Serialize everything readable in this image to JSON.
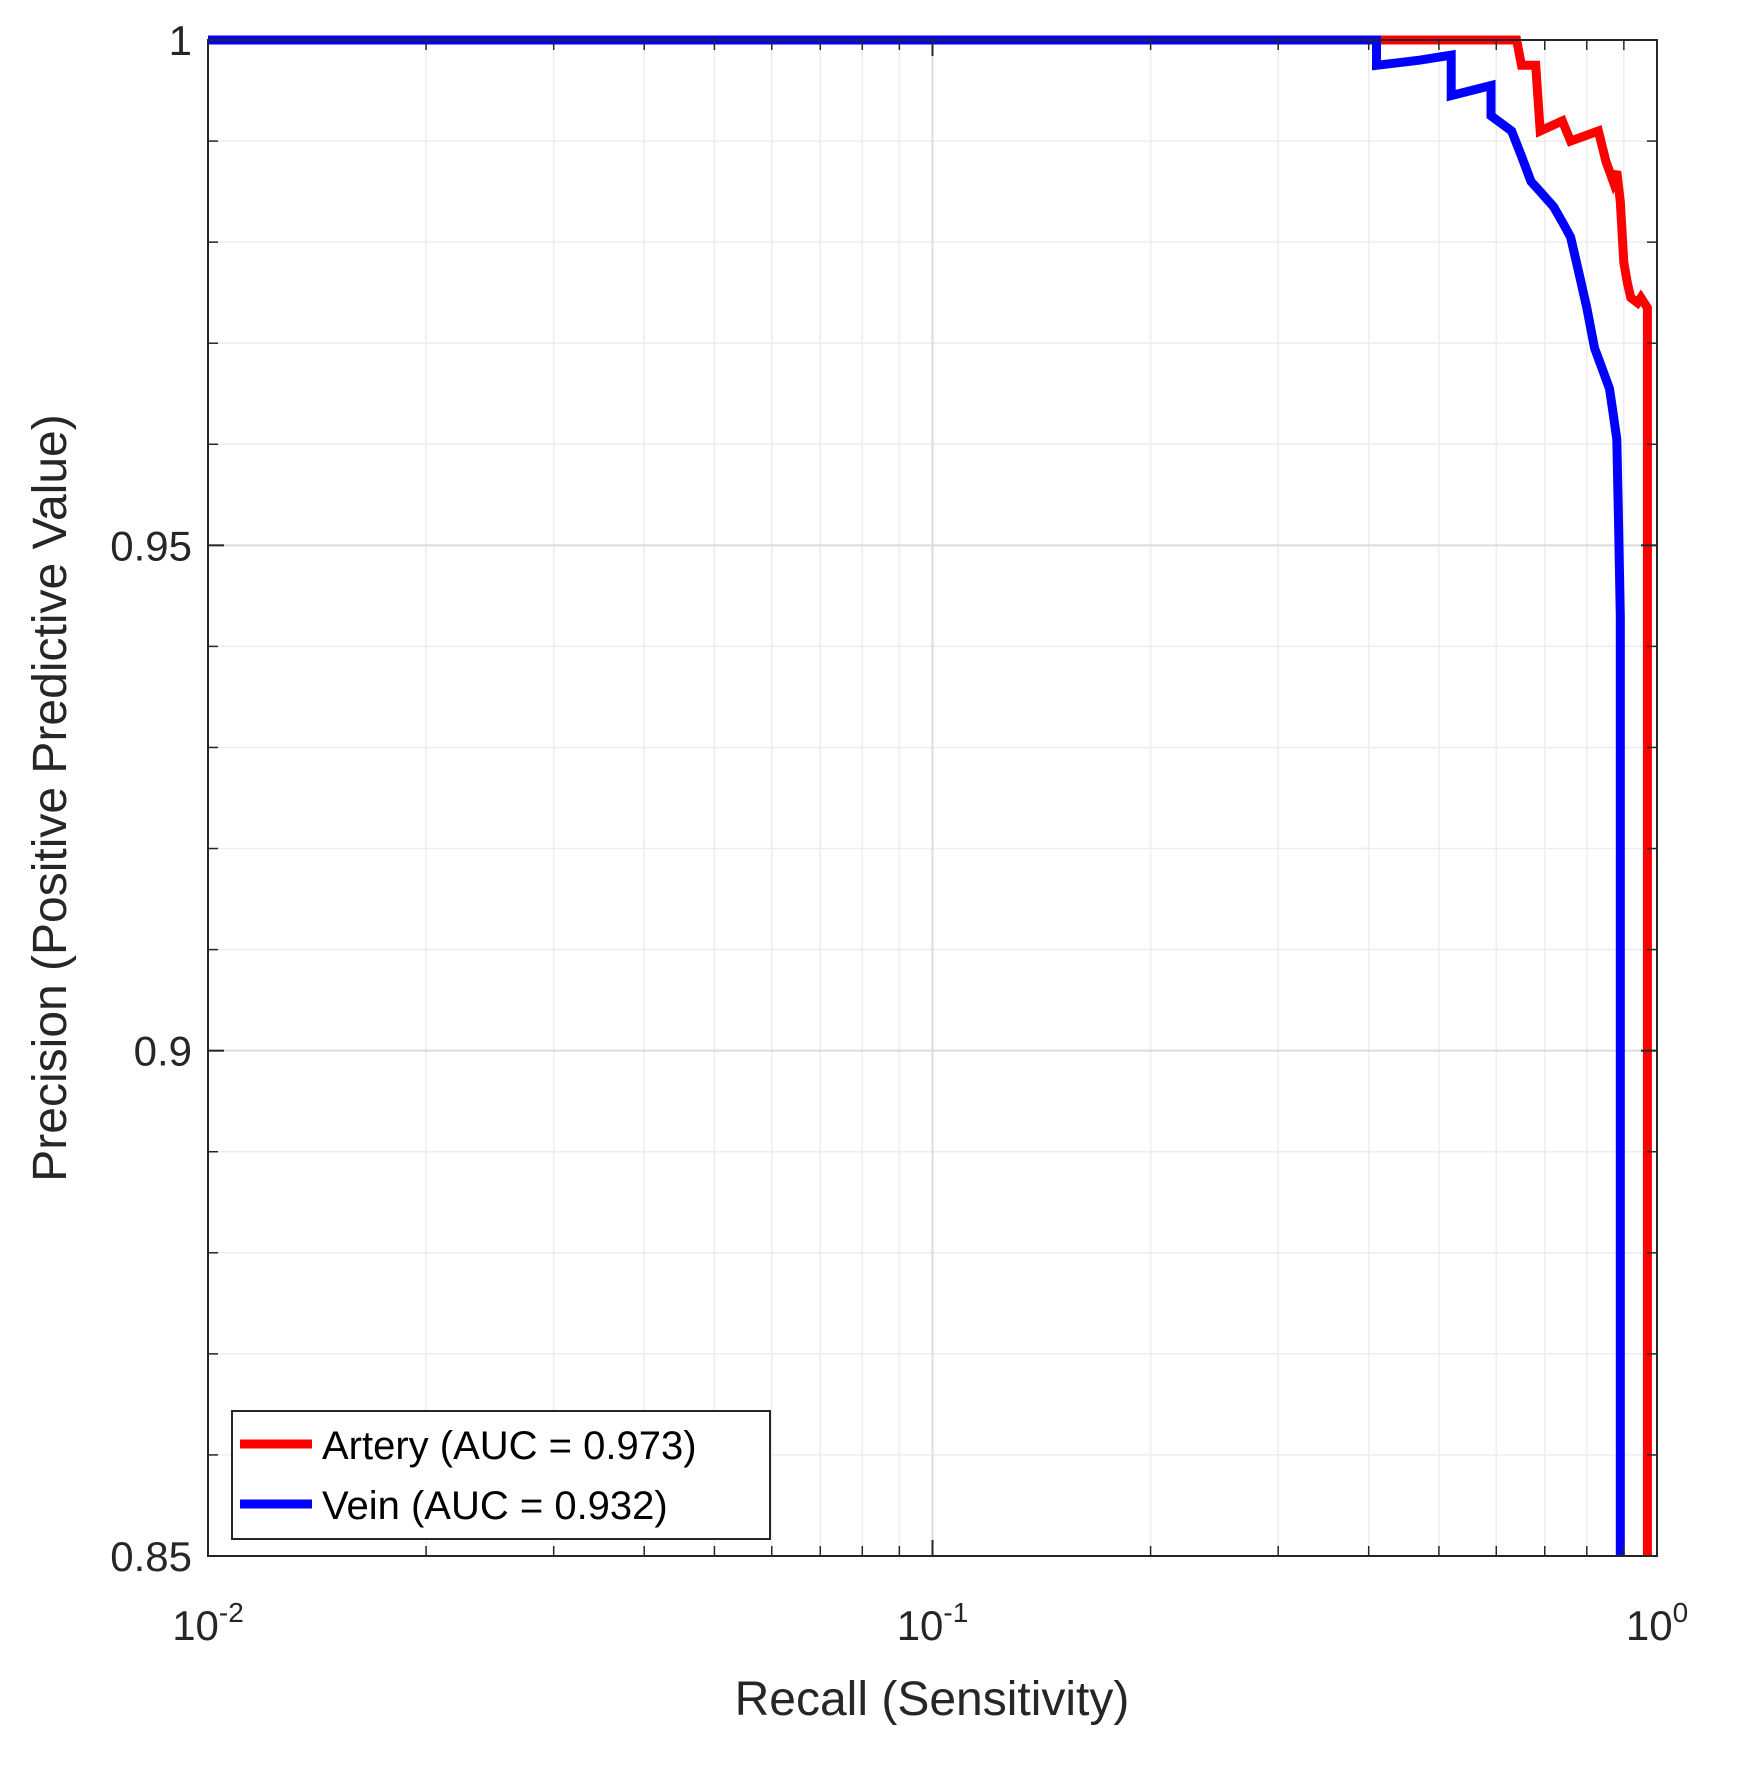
{
  "chart_data": {
    "type": "line",
    "title": "",
    "xlabel": "Recall (Sensitivity)",
    "ylabel": "Precision (Positive Predictive Value)",
    "xscale": "log",
    "xlim": [
      0.01,
      1
    ],
    "ylim": [
      0.85,
      1
    ],
    "grid": true,
    "x_ticks": [
      {
        "base": "10",
        "exp": "-2",
        "value": 0.01
      },
      {
        "base": "10",
        "exp": "-1",
        "value": 0.1
      },
      {
        "base": "10",
        "exp": "0",
        "value": 1
      }
    ],
    "y_ticks": [
      {
        "label": "0.85",
        "value": 0.85
      },
      {
        "label": "0.9",
        "value": 0.9
      },
      {
        "label": "0.95",
        "value": 0.95
      },
      {
        "label": "1",
        "value": 1.0
      }
    ],
    "legend_position": "bottom-left",
    "series": [
      {
        "name": "Artery (AUC = 0.973)",
        "color": "#ff0000",
        "points": [
          [
            0.01,
            1.0
          ],
          [
            0.64,
            1.0
          ],
          [
            0.65,
            0.9975
          ],
          [
            0.68,
            0.9975
          ],
          [
            0.69,
            0.991
          ],
          [
            0.74,
            0.992
          ],
          [
            0.76,
            0.99
          ],
          [
            0.83,
            0.991
          ],
          [
            0.85,
            0.988
          ],
          [
            0.87,
            0.986
          ],
          [
            0.88,
            0.987
          ],
          [
            0.89,
            0.984
          ],
          [
            0.9,
            0.978
          ],
          [
            0.91,
            0.976
          ],
          [
            0.92,
            0.9745
          ],
          [
            0.94,
            0.974
          ],
          [
            0.95,
            0.9745
          ],
          [
            0.97,
            0.9735
          ],
          [
            0.97,
            0.85
          ]
        ]
      },
      {
        "name": "Vein (AUC = 0.932)",
        "color": "#0000ff",
        "points": [
          [
            0.01,
            1.0
          ],
          [
            0.41,
            1.0
          ],
          [
            0.41,
            0.9975
          ],
          [
            0.47,
            0.998
          ],
          [
            0.52,
            0.9985
          ],
          [
            0.52,
            0.9945
          ],
          [
            0.59,
            0.9955
          ],
          [
            0.59,
            0.9925
          ],
          [
            0.63,
            0.991
          ],
          [
            0.65,
            0.9885
          ],
          [
            0.67,
            0.986
          ],
          [
            0.69,
            0.985
          ],
          [
            0.72,
            0.9835
          ],
          [
            0.74,
            0.982
          ],
          [
            0.76,
            0.9805
          ],
          [
            0.78,
            0.977
          ],
          [
            0.8,
            0.9735
          ],
          [
            0.82,
            0.9695
          ],
          [
            0.84,
            0.9675
          ],
          [
            0.86,
            0.9655
          ],
          [
            0.87,
            0.963
          ],
          [
            0.88,
            0.9605
          ],
          [
            0.885,
            0.952
          ],
          [
            0.89,
            0.943
          ],
          [
            0.89,
            0.85
          ]
        ]
      }
    ]
  }
}
